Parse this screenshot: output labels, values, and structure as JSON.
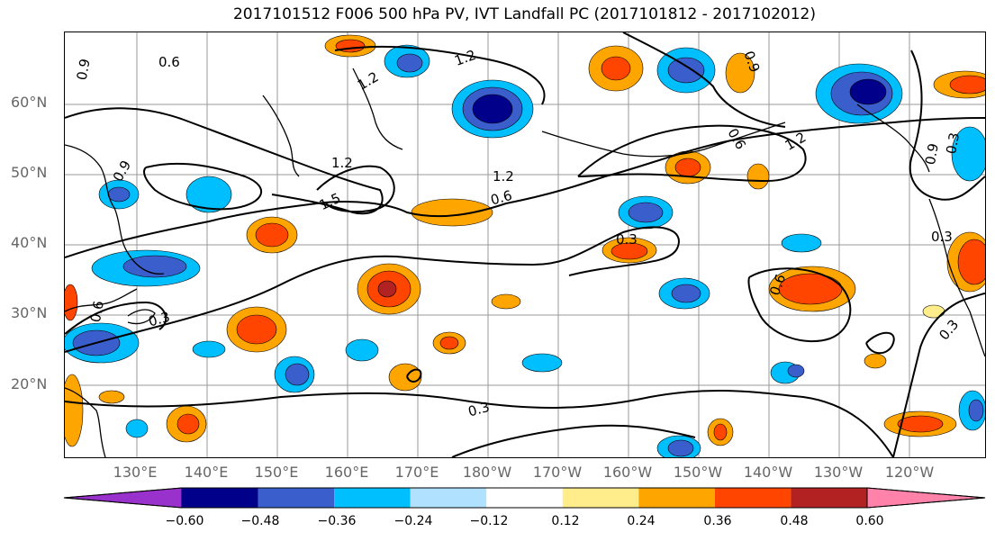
{
  "title": "2017101512 F006 500 hPa PV, IVT Landfall PC (2017101812 - 2017102012)",
  "lat_labels": [
    "60°N",
    "50°N",
    "40°N",
    "30°N",
    "20°N"
  ],
  "lon_labels": [
    "130°E",
    "140°E",
    "150°E",
    "160°E",
    "170°E",
    "180°W",
    "170°W",
    "160°W",
    "150°W",
    "140°W",
    "130°W",
    "120°W"
  ],
  "contour_labels": [
    "0.6",
    "0.9",
    "1.2",
    "1.2",
    "1.5",
    "1.2",
    "0.6",
    "1.2",
    "0.9",
    "1.2",
    "0.9",
    "0.3",
    "0.3",
    "0.3",
    "0.6",
    "0.9",
    "0.6",
    "0.3",
    "0.3",
    "0.3",
    "0.6"
  ],
  "colorbar": {
    "ticks": [
      "−0.60",
      "−0.48",
      "−0.36",
      "−0.24",
      "−0.12",
      "0.12",
      "0.24",
      "0.36",
      "0.48",
      "0.60"
    ],
    "colors": [
      "#9932cc",
      "#00008b",
      "#3a5fcd",
      "#00bfff",
      "#b0e2ff",
      "#ffffff",
      "#ffec8b",
      "#ffa500",
      "#ff4500",
      "#b22222",
      "#ff82ab"
    ]
  }
}
